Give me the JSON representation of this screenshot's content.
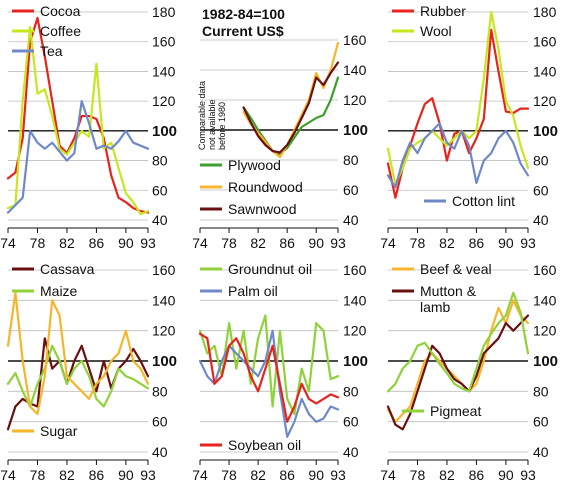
{
  "header": {
    "base": "1982-84=100",
    "units": "Current US$"
  },
  "chart_note": "Comparable data not available before 1980",
  "colors": {
    "red": "#e8231c",
    "green": "#8fd23a",
    "lime": "#c8e61e",
    "blue": "#6f88c9",
    "maroon": "#6a1010",
    "orange": "#f7b52b",
    "darkgreen": "#3ca02c"
  },
  "chart_data": [
    {
      "type": "line",
      "x_ticks": [
        "74",
        "78",
        "82",
        "86",
        "90",
        "93"
      ],
      "y_ticks": [
        40,
        60,
        80,
        100,
        120,
        140,
        160,
        180
      ],
      "xlim": [
        1974,
        1993
      ],
      "ylim": [
        40,
        180
      ],
      "series": [
        {
          "name": "Cocoa",
          "color": "red",
          "x": [
            1974,
            1975,
            1976,
            1977,
            1978,
            1979,
            1980,
            1981,
            1982,
            1983,
            1984,
            1985,
            1986,
            1987,
            1988,
            1989,
            1990,
            1991,
            1992,
            1993
          ],
          "values": [
            68,
            72,
            95,
            160,
            176,
            150,
            120,
            90,
            85,
            95,
            110,
            110,
            108,
            95,
            70,
            55,
            52,
            48,
            46,
            45
          ]
        },
        {
          "name": "Coffee",
          "color": "lime",
          "x": [
            1974,
            1975,
            1976,
            1977,
            1978,
            1979,
            1980,
            1981,
            1982,
            1983,
            1984,
            1985,
            1986,
            1987,
            1988,
            1989,
            1990,
            1991,
            1992,
            1993
          ],
          "values": [
            48,
            50,
            120,
            170,
            125,
            128,
            110,
            88,
            84,
            92,
            100,
            96,
            145,
            88,
            92,
            75,
            58,
            52,
            44,
            46
          ]
        },
        {
          "name": "Tea",
          "color": "blue",
          "x": [
            1974,
            1975,
            1976,
            1977,
            1978,
            1979,
            1980,
            1981,
            1982,
            1983,
            1984,
            1985,
            1986,
            1987,
            1988,
            1989,
            1990,
            1991,
            1992,
            1993
          ],
          "values": [
            45,
            50,
            55,
            100,
            92,
            88,
            92,
            86,
            80,
            85,
            120,
            105,
            88,
            90,
            88,
            93,
            100,
            92,
            90,
            88
          ]
        }
      ]
    },
    {
      "type": "line",
      "x_ticks": [
        "74",
        "78",
        "82",
        "86",
        "90",
        "93"
      ],
      "y_ticks": [
        40,
        60,
        80,
        100,
        120,
        140,
        160
      ],
      "xlim": [
        1974,
        1993
      ],
      "ylim": [
        40,
        160
      ],
      "series": [
        {
          "name": "Plywood",
          "color": "darkgreen",
          "x": [
            1980,
            1981,
            1982,
            1983,
            1984,
            1985,
            1986,
            1987,
            1988,
            1989,
            1990,
            1991,
            1992,
            1993
          ],
          "values": [
            115,
            108,
            100,
            93,
            86,
            84,
            88,
            95,
            102,
            105,
            108,
            110,
            120,
            135
          ]
        },
        {
          "name": "Roundwood",
          "color": "orange",
          "x": [
            1980,
            1981,
            1982,
            1983,
            1984,
            1985,
            1986,
            1987,
            1988,
            1989,
            1990,
            1991,
            1992,
            1993
          ],
          "values": [
            112,
            104,
            98,
            92,
            86,
            82,
            90,
            100,
            110,
            120,
            138,
            128,
            140,
            158
          ]
        },
        {
          "name": "Sawnwood",
          "color": "maroon",
          "x": [
            1980,
            1981,
            1982,
            1983,
            1984,
            1985,
            1986,
            1987,
            1988,
            1989,
            1990,
            1991,
            1992,
            1993
          ],
          "values": [
            115,
            105,
            96,
            90,
            86,
            85,
            90,
            98,
            108,
            118,
            135,
            130,
            138,
            145
          ]
        }
      ]
    },
    {
      "type": "line",
      "x_ticks": [
        "74",
        "78",
        "82",
        "86",
        "90",
        "93"
      ],
      "y_ticks": [
        40,
        60,
        80,
        100,
        120,
        140,
        160,
        180
      ],
      "xlim": [
        1974,
        1993
      ],
      "ylim": [
        40,
        180
      ],
      "series": [
        {
          "name": "Rubber",
          "color": "red",
          "x": [
            1974,
            1975,
            1976,
            1977,
            1978,
            1979,
            1980,
            1981,
            1982,
            1983,
            1984,
            1985,
            1986,
            1987,
            1988,
            1989,
            1990,
            1991,
            1992,
            1993
          ],
          "values": [
            78,
            55,
            75,
            90,
            105,
            118,
            122,
            105,
            80,
            98,
            100,
            85,
            95,
            108,
            168,
            140,
            113,
            112,
            115,
            115
          ]
        },
        {
          "name": "Wool",
          "color": "lime",
          "x": [
            1974,
            1975,
            1976,
            1977,
            1978,
            1979,
            1980,
            1981,
            1982,
            1983,
            1984,
            1985,
            1986,
            1987,
            1988,
            1989,
            1990,
            1991,
            1992,
            1993
          ],
          "values": [
            88,
            64,
            75,
            88,
            92,
            95,
            100,
            95,
            90,
            95,
            100,
            95,
            100,
            135,
            180,
            155,
            120,
            110,
            90,
            75
          ]
        },
        {
          "name": "Cotton lint",
          "color": "blue",
          "x": [
            1974,
            1975,
            1976,
            1977,
            1978,
            1979,
            1980,
            1981,
            1982,
            1983,
            1984,
            1985,
            1986,
            1987,
            1988,
            1989,
            1990,
            1991,
            1992,
            1993
          ],
          "values": [
            70,
            62,
            80,
            92,
            85,
            95,
            100,
            105,
            92,
            88,
            100,
            90,
            65,
            80,
            85,
            95,
            100,
            92,
            78,
            70
          ]
        }
      ]
    },
    {
      "type": "line",
      "x_ticks": [
        "74",
        "78",
        "82",
        "86",
        "90",
        "93"
      ],
      "y_ticks": [
        40,
        60,
        80,
        100,
        120,
        140,
        160
      ],
      "xlim": [
        1974,
        1993
      ],
      "ylim": [
        40,
        160
      ],
      "series": [
        {
          "name": "Cassava",
          "color": "maroon",
          "x": [
            1974,
            1975,
            1976,
            1977,
            1978,
            1979,
            1980,
            1981,
            1982,
            1983,
            1984,
            1985,
            1986,
            1987,
            1988,
            1989,
            1990,
            1991,
            1992,
            1993
          ],
          "values": [
            55,
            70,
            75,
            72,
            70,
            115,
            95,
            100,
            85,
            100,
            110,
            95,
            80,
            100,
            82,
            95,
            100,
            108,
            100,
            90
          ]
        },
        {
          "name": "Maize",
          "color": "green",
          "x": [
            1974,
            1975,
            1976,
            1977,
            1978,
            1979,
            1980,
            1981,
            1982,
            1983,
            1984,
            1985,
            1986,
            1987,
            1988,
            1989,
            1990,
            1991,
            1992,
            1993
          ],
          "values": [
            85,
            92,
            80,
            70,
            85,
            95,
            110,
            100,
            85,
            95,
            100,
            90,
            75,
            70,
            80,
            95,
            90,
            88,
            85,
            82
          ]
        },
        {
          "name": "Sugar",
          "color": "orange",
          "x": [
            1974,
            1975,
            1976,
            1977,
            1978,
            1979,
            1980,
            1981,
            1982,
            1983,
            1984,
            1985,
            1986,
            1987,
            1988,
            1989,
            1990,
            1991,
            1992,
            1993
          ],
          "values": [
            110,
            145,
            100,
            70,
            65,
            90,
            140,
            130,
            90,
            85,
            80,
            75,
            85,
            90,
            100,
            105,
            120,
            100,
            95,
            85
          ]
        }
      ]
    },
    {
      "type": "line",
      "x_ticks": [
        "74",
        "78",
        "82",
        "86",
        "90",
        "93"
      ],
      "y_ticks": [
        40,
        60,
        80,
        100,
        120,
        140,
        160
      ],
      "xlim": [
        1974,
        1993
      ],
      "ylim": [
        40,
        160
      ],
      "series": [
        {
          "name": "Groundnut oil",
          "color": "green",
          "x": [
            1974,
            1975,
            1976,
            1977,
            1978,
            1979,
            1980,
            1981,
            1982,
            1983,
            1984,
            1985,
            1986,
            1987,
            1988,
            1989,
            1990,
            1991,
            1992,
            1993
          ],
          "values": [
            120,
            105,
            110,
            90,
            125,
            95,
            120,
            85,
            115,
            130,
            70,
            120,
            75,
            65,
            95,
            80,
            125,
            120,
            88,
            90
          ]
        },
        {
          "name": "Palm oil",
          "color": "blue",
          "x": [
            1974,
            1975,
            1976,
            1977,
            1978,
            1979,
            1980,
            1981,
            1982,
            1983,
            1984,
            1985,
            1986,
            1987,
            1988,
            1989,
            1990,
            1991,
            1992,
            1993
          ],
          "values": [
            100,
            90,
            85,
            100,
            110,
            105,
            100,
            95,
            90,
            100,
            120,
            80,
            50,
            60,
            75,
            65,
            60,
            62,
            70,
            68
          ]
        },
        {
          "name": "Soybean oil",
          "color": "red",
          "x": [
            1974,
            1975,
            1976,
            1977,
            1978,
            1979,
            1980,
            1981,
            1982,
            1983,
            1984,
            1985,
            1986,
            1987,
            1988,
            1989,
            1990,
            1991,
            1992,
            1993
          ],
          "values": [
            118,
            115,
            85,
            90,
            110,
            115,
            105,
            90,
            80,
            95,
            110,
            85,
            60,
            70,
            85,
            75,
            72,
            75,
            78,
            76
          ]
        }
      ]
    },
    {
      "type": "line",
      "x_ticks": [
        "74",
        "78",
        "82",
        "86",
        "90",
        "93"
      ],
      "y_ticks": [
        40,
        60,
        80,
        100,
        120,
        140,
        160
      ],
      "xlim": [
        1974,
        1993
      ],
      "ylim": [
        40,
        160
      ],
      "series": [
        {
          "name": "Beef & veal",
          "color": "orange",
          "x": [
            1974,
            1975,
            1976,
            1977,
            1978,
            1979,
            1980,
            1981,
            1982,
            1983,
            1984,
            1985,
            1986,
            1987,
            1988,
            1989,
            1990,
            1991,
            1992,
            1993
          ],
          "values": [
            68,
            60,
            65,
            70,
            85,
            100,
            105,
            100,
            95,
            90,
            85,
            80,
            85,
            100,
            120,
            135,
            125,
            140,
            130,
            125
          ]
        },
        {
          "name": "Mutton & lamb",
          "color": "maroon",
          "x": [
            1974,
            1975,
            1976,
            1977,
            1978,
            1979,
            1980,
            1981,
            1982,
            1983,
            1984,
            1985,
            1986,
            1987,
            1988,
            1989,
            1990,
            1991,
            1992,
            1993
          ],
          "values": [
            70,
            58,
            55,
            65,
            80,
            95,
            110,
            105,
            95,
            88,
            85,
            80,
            90,
            105,
            110,
            115,
            125,
            120,
            125,
            130
          ]
        },
        {
          "name": "Pigmeat",
          "color": "green",
          "x": [
            1974,
            1975,
            1976,
            1977,
            1978,
            1979,
            1980,
            1981,
            1982,
            1983,
            1984,
            1985,
            1986,
            1987,
            1988,
            1989,
            1990,
            1991,
            1992,
            1993
          ],
          "values": [
            80,
            85,
            95,
            100,
            110,
            112,
            105,
            98,
            92,
            85,
            82,
            80,
            95,
            110,
            118,
            125,
            130,
            145,
            132,
            105
          ]
        }
      ]
    }
  ]
}
